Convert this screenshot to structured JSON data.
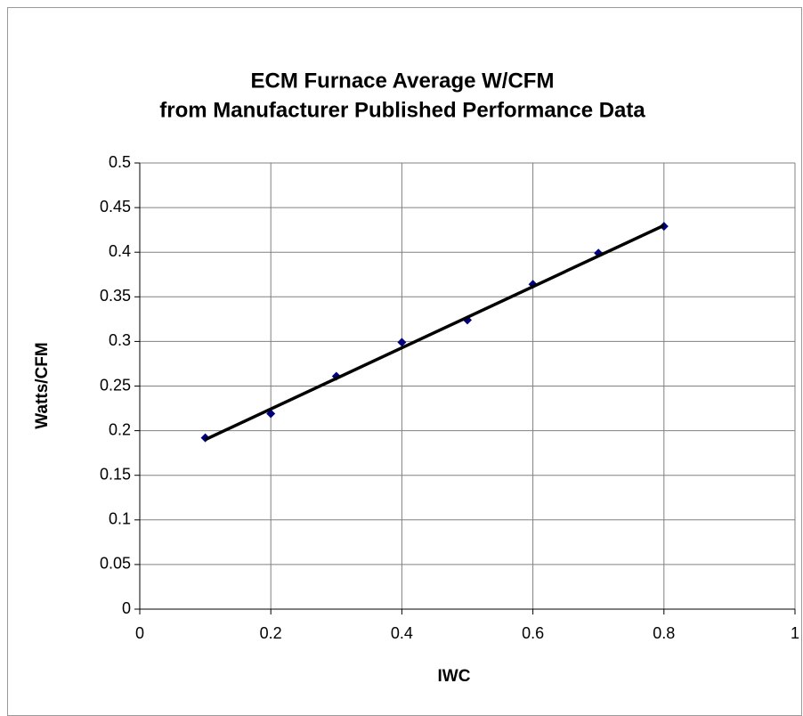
{
  "chart_data": {
    "type": "scatter",
    "title": [
      "ECM Furnace Average W/CFM",
      "from Manufacturer Published Performance Data"
    ],
    "x_label": "IWC",
    "y_label": "Watts/CFM",
    "series": [
      {
        "color": "#000080",
        "x": [
          0.1,
          0.2,
          0.3,
          0.4,
          0.5,
          0.6,
          0.7,
          0.8
        ],
        "values": [
          0.192,
          0.219,
          0.261,
          0.299,
          0.324,
          0.364,
          0.399,
          0.429
        ]
      }
    ],
    "trendline": {
      "color": "#000000",
      "x": [
        0.1,
        0.8
      ],
      "values": [
        0.19,
        0.43
      ]
    },
    "xlim": [
      0,
      1
    ],
    "xticks": [
      0,
      0.2,
      0.4,
      0.6,
      0.8,
      1
    ],
    "ylim": [
      0,
      0.5
    ],
    "yticks": [
      0,
      0.05,
      0.1,
      0.15,
      0.2,
      0.25,
      0.3,
      0.35,
      0.4,
      0.45,
      0.5
    ],
    "grid": true
  }
}
